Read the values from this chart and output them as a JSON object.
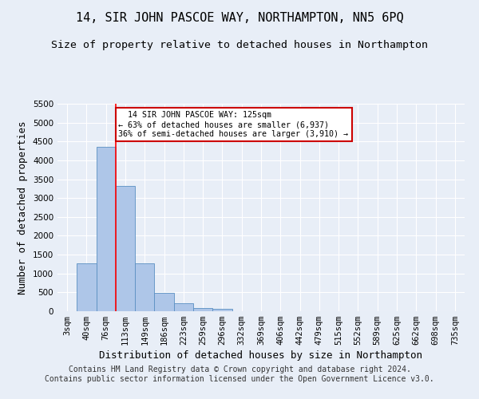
{
  "title": "14, SIR JOHN PASCOE WAY, NORTHAMPTON, NN5 6PQ",
  "subtitle": "Size of property relative to detached houses in Northampton",
  "xlabel": "Distribution of detached houses by size in Northampton",
  "ylabel": "Number of detached properties",
  "footer_line1": "Contains HM Land Registry data © Crown copyright and database right 2024.",
  "footer_line2": "Contains public sector information licensed under the Open Government Licence v3.0.",
  "categories": [
    "3sqm",
    "40sqm",
    "76sqm",
    "113sqm",
    "149sqm",
    "186sqm",
    "223sqm",
    "259sqm",
    "296sqm",
    "332sqm",
    "369sqm",
    "406sqm",
    "442sqm",
    "479sqm",
    "515sqm",
    "552sqm",
    "589sqm",
    "625sqm",
    "662sqm",
    "698sqm",
    "735sqm"
  ],
  "bar_values": [
    0,
    1260,
    4350,
    3320,
    1260,
    490,
    215,
    95,
    60,
    0,
    0,
    0,
    0,
    0,
    0,
    0,
    0,
    0,
    0,
    0,
    0
  ],
  "bar_color": "#aec6e8",
  "bar_edge_color": "#5a8fc2",
  "ylim": [
    0,
    5500
  ],
  "yticks": [
    0,
    500,
    1000,
    1500,
    2000,
    2500,
    3000,
    3500,
    4000,
    4500,
    5000,
    5500
  ],
  "property_label": "14 SIR JOHN PASCOE WAY: 125sqm",
  "pct_smaller": 63,
  "count_smaller": 6937,
  "pct_larger": 36,
  "count_larger": 3910,
  "vline_bin_index": 2.5,
  "annotation_box_color": "#cc0000",
  "background_color": "#e8eef7",
  "grid_color": "#ffffff",
  "title_fontsize": 11,
  "subtitle_fontsize": 9.5,
  "axis_label_fontsize": 9,
  "tick_fontsize": 7.5,
  "footer_fontsize": 7
}
